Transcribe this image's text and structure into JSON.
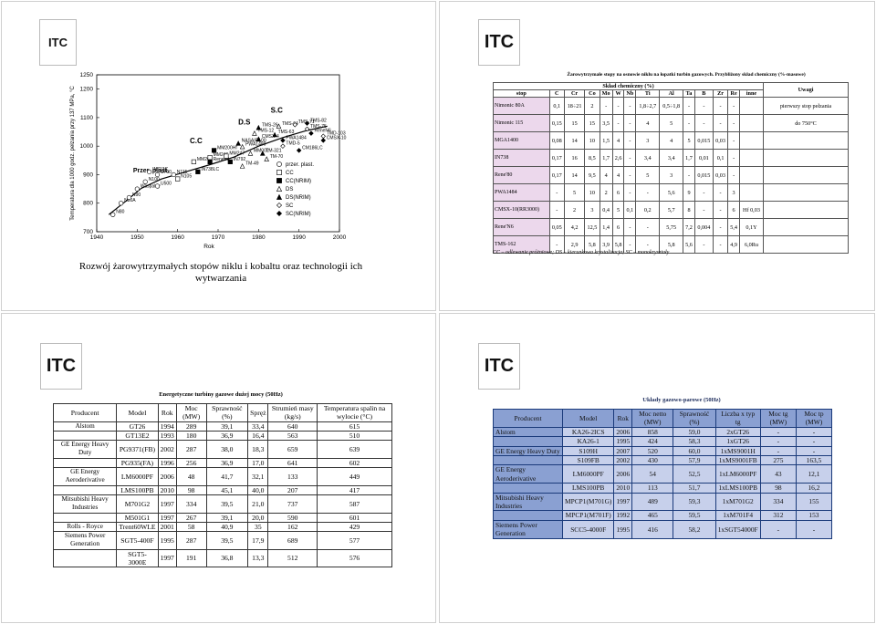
{
  "logo": "ITC",
  "q1": {
    "caption": "Rozwój żarowytrzymałych stopów niklu i kobaltu oraz technologii ich wytwarzania",
    "chart_data": {
      "type": "scatter",
      "ylabel": "Temperatura dla 1000 godz. pełzania przy 137 MPa, °C",
      "xlabel": "Rok",
      "xlim": [
        1940,
        2000
      ],
      "ylim": [
        700,
        1250
      ],
      "x_ticks": [
        "1940",
        "1950",
        "1960",
        "1970",
        "1980",
        "1990",
        "2000"
      ],
      "y_ticks": [
        "700",
        "800",
        "900",
        "1000",
        "1100",
        "1200",
        "1250"
      ],
      "group_labels": [
        "Przer. plast.",
        "C.C",
        "D.S",
        "S.C"
      ],
      "legend": [
        "przer. plast.",
        "CC",
        "CC(NRIM)",
        "DS",
        "DS(NRIM)",
        "SC",
        "SC(NRIM)"
      ],
      "points": [
        {
          "label": "N80",
          "x": 1944,
          "y": 760
        },
        {
          "label": "N80A",
          "x": 1946,
          "y": 800
        },
        {
          "label": "N90",
          "x": 1948,
          "y": 820
        },
        {
          "label": "Waspaloy",
          "x": 1950,
          "y": 850
        },
        {
          "label": "N100",
          "x": 1952,
          "y": 875
        },
        {
          "label": "U500",
          "x": 1955,
          "y": 860
        },
        {
          "label": "IN713C",
          "x": 1953,
          "y": 910
        },
        {
          "label": "U700",
          "x": 1955,
          "y": 900
        },
        {
          "label": "N115",
          "x": 1959,
          "y": 900
        },
        {
          "label": "N105",
          "x": 1960,
          "y": 885
        },
        {
          "label": "IN738LC",
          "x": 1965,
          "y": 910
        },
        {
          "label": "MM200",
          "x": 1964,
          "y": 945
        },
        {
          "label": "MM200Hf",
          "x": 1969,
          "y": 985
        },
        {
          "label": "MM246",
          "x": 1968,
          "y": 960
        },
        {
          "label": "Rene80",
          "x": 1968,
          "y": 945
        },
        {
          "label": "MM247",
          "x": 1972,
          "y": 965
        },
        {
          "label": "IN792",
          "x": 1973,
          "y": 945
        },
        {
          "label": "TM-49",
          "x": 1976,
          "y": 930
        },
        {
          "label": "NASAIR100",
          "x": 1975,
          "y": 1010
        },
        {
          "label": "PWA1480",
          "x": 1976,
          "y": 998
        },
        {
          "label": "CMSX-4",
          "x": 1980,
          "y": 1025
        },
        {
          "label": "TMS-12",
          "x": 1979,
          "y": 1045
        },
        {
          "label": "TMS-26",
          "x": 1980,
          "y": 1065
        },
        {
          "label": "MM002",
          "x": 1978,
          "y": 975
        },
        {
          "label": "TM-321",
          "x": 1981,
          "y": 975
        },
        {
          "label": "TM-70",
          "x": 1982,
          "y": 955
        },
        {
          "label": "TMS-63",
          "x": 1984,
          "y": 1040
        },
        {
          "label": "TMS-64",
          "x": 1985,
          "y": 1070
        },
        {
          "label": "PWA1484",
          "x": 1986,
          "y": 1020
        },
        {
          "label": "TMD-5",
          "x": 1986,
          "y": 1000
        },
        {
          "label": "CM186LC",
          "x": 1990,
          "y": 985
        },
        {
          "label": "TMS-71",
          "x": 1989,
          "y": 1075
        },
        {
          "label": "TMS-82",
          "x": 1992,
          "y": 1080
        },
        {
          "label": "TMS-75",
          "x": 1992,
          "y": 1060
        },
        {
          "label": "ReneN6",
          "x": 1993,
          "y": 1045
        },
        {
          "label": "TMD-103",
          "x": 1996,
          "y": 1035
        },
        {
          "label": "CMSX-10",
          "x": 1996,
          "y": 1020
        }
      ]
    }
  },
  "q2": {
    "title": "Żarowytrzymałe stopy na osnowie niklu na łopatki turbin gazowych. Przybliżony skład chemiczny (%-masowe)",
    "headers": [
      "stop",
      "C",
      "Cr",
      "Co",
      "Mo",
      "W",
      "Nb",
      "Ti",
      "Al",
      "Ta",
      "B",
      "Zr",
      "Re",
      "inne",
      "Uwagi"
    ],
    "group_header": "Skład chemiczny (%)",
    "rows": [
      [
        "Nimonic 80A",
        "0,1",
        "18÷21",
        "2",
        "-",
        "-",
        "-",
        "1,8÷2,7",
        "0,5÷1,8",
        "-",
        "-",
        "-",
        "-",
        "",
        "pierwszy stop pełzania"
      ],
      [
        "Nimonic 115",
        "0,15",
        "15",
        "15",
        "3,5",
        "-",
        "-",
        "4",
        "5",
        "-",
        "-",
        "-",
        "-",
        "",
        "do 750°C"
      ],
      [
        "MGA1400",
        "0,08",
        "14",
        "10",
        "1,5",
        "4",
        "-",
        "3",
        "4",
        "5",
        "0,015",
        "0,03",
        "-",
        "",
        ""
      ],
      [
        "IN738",
        "0,17",
        "16",
        "8,5",
        "1,7",
        "2,6",
        "-",
        "3,4",
        "3,4",
        "1,7",
        "0,01",
        "0,1",
        "-",
        "",
        ""
      ],
      [
        "Rene'80",
        "0,17",
        "14",
        "9,5",
        "4",
        "4",
        "-",
        "5",
        "3",
        "-",
        "0,015",
        "0,03",
        "-",
        "",
        ""
      ],
      [
        "PWA1484",
        "-",
        "5",
        "10",
        "2",
        "6",
        "-",
        "-",
        "5,6",
        "9",
        "-",
        "-",
        "3",
        "",
        ""
      ],
      [
        "CMSX-10(RR3000)",
        "-",
        "2",
        "3",
        "0,4",
        "5",
        "0,1",
        "0,2",
        "5,7",
        "8",
        "-",
        "-",
        "6",
        "Hf 0,03",
        ""
      ],
      [
        "Rene'N6",
        "0,05",
        "4,2",
        "12,5",
        "1,4",
        "6",
        "-",
        "-",
        "5,75",
        "7,2",
        "0,004",
        "-",
        "5,4",
        "0,1Y",
        ""
      ],
      [
        "TMS-162",
        "-",
        "2,9",
        "5,8",
        "3,9",
        "5,8",
        "-",
        "-",
        "5,8",
        "5,6",
        "-",
        "-",
        "4,9",
        "6,0Ru",
        ""
      ]
    ],
    "footnote": "CC – odlewanie próżniowe; DS – kierunkowa krystalizacja; SC – monokryształy"
  },
  "q3": {
    "title": "Energetyczne turbiny gazowe dużej mocy (50Hz)",
    "headers": [
      "Producent",
      "Model",
      "Rok",
      "Moc (MW)",
      "Sprawność (%)",
      "Spręż",
      "Strumień masy (kg/s)",
      "Temperatura spalin na wylocie (°C)"
    ],
    "rows": [
      [
        "Alstom",
        "GT26",
        "1994",
        "289",
        "39,1",
        "33,4",
        "640",
        "615"
      ],
      [
        "",
        "GT13E2",
        "1993",
        "180",
        "36,9",
        "16,4",
        "563",
        "510"
      ],
      [
        "GE Energy Heavy Duty",
        "PG9371(FB)",
        "2002",
        "287",
        "38,0",
        "18,3",
        "659",
        "639"
      ],
      [
        "",
        "PG935(FA)",
        "1996",
        "256",
        "36,9",
        "17,0",
        "641",
        "602"
      ],
      [
        "GE Energy Aeroderivative",
        "LM6000PF",
        "2006",
        "48",
        "41,7",
        "32,1",
        "133",
        "449"
      ],
      [
        "",
        "LMS100PB",
        "2010",
        "98",
        "45,1",
        "40,0",
        "207",
        "417"
      ],
      [
        "Mitsubishi Heavy Industries",
        "M701G2",
        "1997",
        "334",
        "39,5",
        "21,0",
        "737",
        "587"
      ],
      [
        "",
        "M501G1",
        "1997",
        "267",
        "39,1",
        "20,0",
        "590",
        "601"
      ],
      [
        "Rolls - Royce",
        "Trent60WLE",
        "2001",
        "58",
        "40,9",
        "35",
        "162",
        "429"
      ],
      [
        "Siemens Power Generation",
        "SGT5-400F",
        "1995",
        "287",
        "39,5",
        "17,9",
        "689",
        "577"
      ],
      [
        "",
        "SGT5-3000E",
        "1997",
        "191",
        "36,8",
        "13,3",
        "512",
        "576"
      ]
    ]
  },
  "q4": {
    "title": "Układy gazowo-parowe (50Hz)",
    "headers": [
      "Producent",
      "Model",
      "Rok",
      "Moc netto (MW)",
      "Sprawność (%)",
      "Liczba x typ tg",
      "Moc tg (MW)",
      "Moc tp (MW)"
    ],
    "rows": [
      [
        "Alstom",
        "KA26-2ICS",
        "2006",
        "858",
        "59,0",
        "2xGT26",
        "-",
        "-"
      ],
      [
        "",
        "KA26-1",
        "1995",
        "424",
        "58,3",
        "1xGT26",
        "-",
        "-"
      ],
      [
        "GE Energy Heavy Duty",
        "S109H",
        "2007",
        "520",
        "60,0",
        "1xMS9001H",
        "-",
        "-"
      ],
      [
        "",
        "S109FB",
        "2002",
        "430",
        "57,9",
        "1xMS9001FB",
        "275",
        "163,5"
      ],
      [
        "GE Energy Aeroderivative",
        "LM6000PF",
        "2006",
        "54",
        "52,5",
        "1xLM6000PF",
        "43",
        "12,1"
      ],
      [
        "",
        "LMS100PB",
        "2010",
        "113",
        "51,7",
        "1xLMS100PB",
        "98",
        "16,2"
      ],
      [
        "Mitsubishi Heavy Industries",
        "MPCP1(M701G)",
        "1997",
        "489",
        "59,3",
        "1xM701G2",
        "334",
        "155"
      ],
      [
        "",
        "MPCP1(M701F)",
        "1992",
        "465",
        "59,5",
        "1xM701F4",
        "312",
        "153"
      ],
      [
        "Siemens Power Generation",
        "SCC5-4000F",
        "1995",
        "416",
        "58,2",
        "1xSGT54000F",
        "-",
        "-"
      ]
    ]
  }
}
